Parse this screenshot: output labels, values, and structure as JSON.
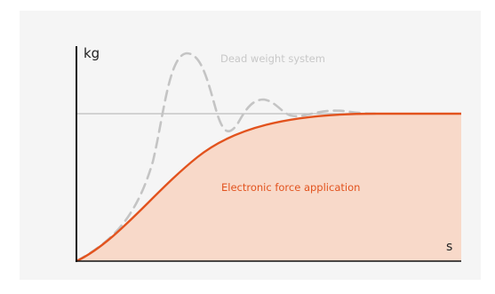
{
  "diagram": {
    "y_unit": "kg",
    "x_unit": "s",
    "dead_weight_label": "Dead weight system",
    "electronic_label": "Electronic force application",
    "colors": {
      "panel": "#f5f5f5",
      "axis": "#111111",
      "reference": "#bdbdbd",
      "dashed": "#c4c4c4",
      "dead_weight_text": "#c8c8c8",
      "curve": "#e2531e",
      "fill": "#f8d9c9",
      "electronic_text": "#e2531e"
    }
  }
}
